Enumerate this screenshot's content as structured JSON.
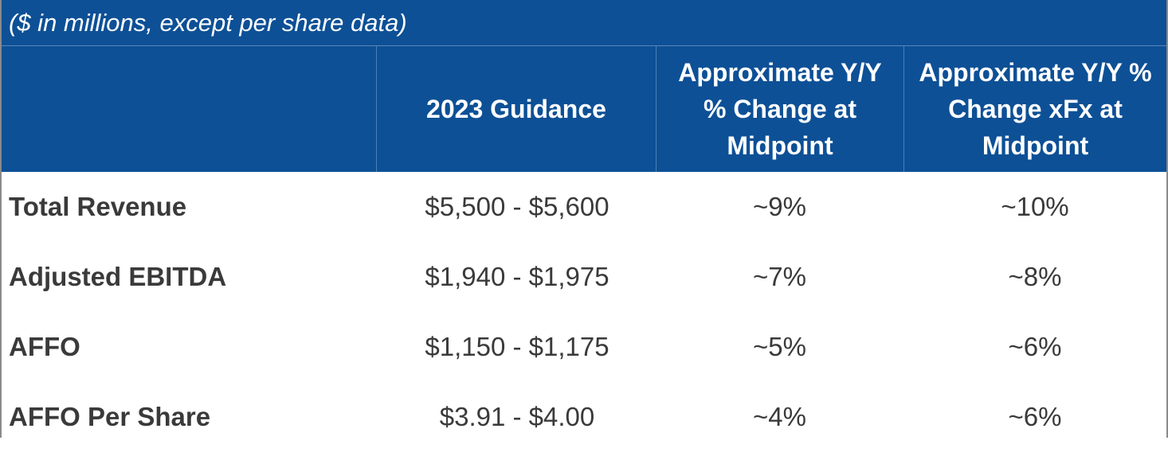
{
  "caption": "($ in millions, except per share data)",
  "columns": [
    "",
    "2023 Guidance",
    "Approximate Y/Y % Change at Midpoint",
    "Approximate Y/Y % Change xFx at Midpoint"
  ],
  "header_lines": {
    "guidance": "2023 Guidance",
    "change_midpoint": [
      "Approximate Y/Y",
      "% Change at",
      "Midpoint"
    ],
    "change_xfx": [
      "Approximate Y/Y %",
      "Change xFx at",
      "Midpoint"
    ]
  },
  "rows": [
    {
      "label": "Total Revenue",
      "guidance": "$5,500 - $5,600",
      "change": "~9%",
      "change_xfx": "~10%"
    },
    {
      "label": "Adjusted EBITDA",
      "guidance": "$1,940 - $1,975",
      "change": "~7%",
      "change_xfx": "~8%"
    },
    {
      "label": "AFFO",
      "guidance": "$1,150 - $1,175",
      "change": "~5%",
      "change_xfx": "~6%"
    },
    {
      "label": "AFFO Per Share",
      "guidance": "$3.91 - $4.00",
      "change": "~4%",
      "change_xfx": "~6%"
    }
  ],
  "colors": {
    "header_bg": "#0d5096",
    "header_text": "#ffffff",
    "body_text": "#3a3a3a"
  }
}
